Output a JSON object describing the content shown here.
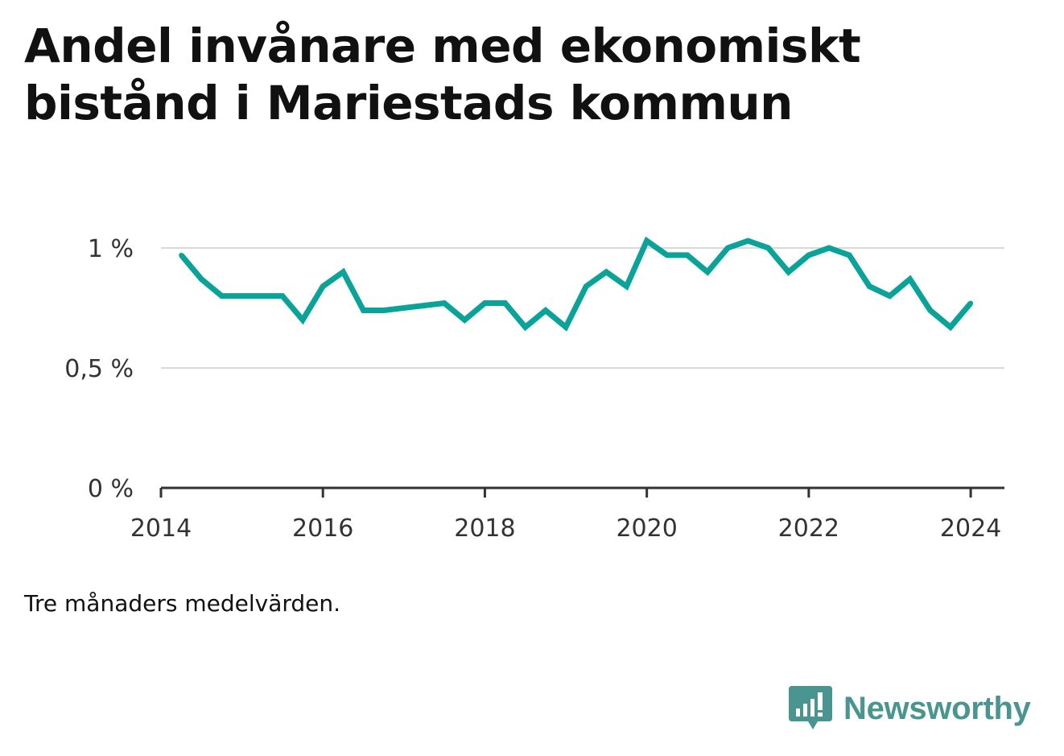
{
  "title": "Andel invånare med ekonomiskt bistånd i Mariestads kommun",
  "note": "Tre månaders medelvärden.",
  "brand": {
    "name": "Newsworthy",
    "logo_icon": "bar-chart-speech-bubble-icon",
    "color": "#4a958f"
  },
  "chart_data": {
    "type": "line",
    "title": "Andel invånare med ekonomiskt bistånd i Mariestads kommun",
    "xlabel": "",
    "ylabel": "",
    "x_ticks": [
      "2014",
      "2016",
      "2018",
      "2020",
      "2022",
      "2024"
    ],
    "y_ticks": [
      "0 %",
      "0,5 %",
      "1 %"
    ],
    "ylim": [
      0,
      1.1
    ],
    "xlim": [
      "2014-01",
      "2024-06"
    ],
    "grid": true,
    "line_color": "#0aa39a",
    "series": [
      {
        "name": "",
        "points": [
          {
            "x": "2014-04",
            "y": 0.97
          },
          {
            "x": "2014-07",
            "y": 0.87
          },
          {
            "x": "2014-10",
            "y": 0.8
          },
          {
            "x": "2015-01",
            "y": 0.8
          },
          {
            "x": "2015-04",
            "y": 0.8
          },
          {
            "x": "2015-07",
            "y": 0.8
          },
          {
            "x": "2015-10",
            "y": 0.7
          },
          {
            "x": "2016-01",
            "y": 0.84
          },
          {
            "x": "2016-04",
            "y": 0.9
          },
          {
            "x": "2016-07",
            "y": 0.74
          },
          {
            "x": "2016-10",
            "y": 0.74
          },
          {
            "x": "2017-07",
            "y": 0.77
          },
          {
            "x": "2017-10",
            "y": 0.7
          },
          {
            "x": "2018-01",
            "y": 0.77
          },
          {
            "x": "2018-04",
            "y": 0.77
          },
          {
            "x": "2018-07",
            "y": 0.67
          },
          {
            "x": "2018-10",
            "y": 0.74
          },
          {
            "x": "2019-01",
            "y": 0.67
          },
          {
            "x": "2019-04",
            "y": 0.84
          },
          {
            "x": "2019-07",
            "y": 0.9
          },
          {
            "x": "2019-10",
            "y": 0.84
          },
          {
            "x": "2020-01",
            "y": 1.03
          },
          {
            "x": "2020-04",
            "y": 0.97
          },
          {
            "x": "2020-07",
            "y": 0.97
          },
          {
            "x": "2020-10",
            "y": 0.9
          },
          {
            "x": "2021-01",
            "y": 1.0
          },
          {
            "x": "2021-04",
            "y": 1.03
          },
          {
            "x": "2021-07",
            "y": 1.0
          },
          {
            "x": "2021-10",
            "y": 0.9
          },
          {
            "x": "2022-01",
            "y": 0.97
          },
          {
            "x": "2022-04",
            "y": 1.0
          },
          {
            "x": "2022-07",
            "y": 0.97
          },
          {
            "x": "2022-10",
            "y": 0.84
          },
          {
            "x": "2023-01",
            "y": 0.8
          },
          {
            "x": "2023-04",
            "y": 0.87
          },
          {
            "x": "2023-07",
            "y": 0.74
          },
          {
            "x": "2023-10",
            "y": 0.67
          },
          {
            "x": "2024-01",
            "y": 0.77
          }
        ]
      }
    ]
  }
}
